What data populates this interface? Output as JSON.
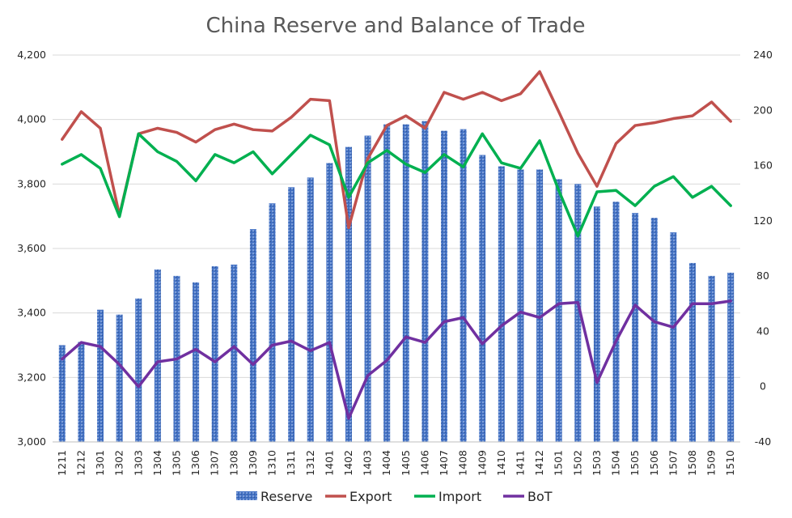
{
  "chart_data": {
    "type": "bar",
    "title": "China Reserve and Balance of Trade",
    "categories": [
      "1211",
      "1212",
      "1301",
      "1302",
      "1303",
      "1304",
      "1305",
      "1306",
      "1307",
      "1308",
      "1309",
      "1310",
      "1311",
      "1312",
      "1401",
      "1402",
      "1403",
      "1404",
      "1405",
      "1406",
      "1407",
      "1408",
      "1409",
      "1410",
      "1411",
      "1412",
      "1501",
      "1502",
      "1503",
      "1504",
      "1505",
      "1506",
      "1507",
      "1508",
      "1509",
      "1510"
    ],
    "left_axis": {
      "ylim": [
        3000,
        4200
      ],
      "ticks": [
        "3,000",
        "3,200",
        "3,400",
        "3,600",
        "3,800",
        "4,000",
        "4,200"
      ]
    },
    "right_axis": {
      "ylim": [
        -40,
        240
      ],
      "ticks": [
        "-40",
        "0",
        "40",
        "80",
        "120",
        "160",
        "200",
        "240"
      ]
    },
    "grid": "horizontal",
    "legend_position": "bottom",
    "series": [
      {
        "name": "Reserve",
        "type": "bar",
        "axis": "left",
        "color": "#4472C4",
        "values": [
          3300,
          3310,
          3410,
          3395,
          3445,
          3535,
          3515,
          3495,
          3545,
          3550,
          3660,
          3740,
          3790,
          3820,
          3865,
          3915,
          3950,
          3985,
          3985,
          3995,
          3965,
          3970,
          3890,
          3855,
          3845,
          3845,
          3815,
          3800,
          3730,
          3745,
          3710,
          3695,
          3650,
          3555,
          3515,
          3525
        ]
      },
      {
        "name": "Export",
        "type": "line",
        "axis": "right",
        "color": "#C0504D",
        "values": [
          179,
          199,
          187,
          124,
          183,
          187,
          184,
          177,
          186,
          190,
          186,
          185,
          195,
          208,
          207,
          115,
          165,
          189,
          196,
          187,
          213,
          208,
          213,
          207,
          212,
          228,
          199,
          169,
          145,
          176,
          189,
          191,
          194,
          196,
          206,
          192
        ]
      },
      {
        "name": "Import",
        "type": "line",
        "axis": "right",
        "color": "#00B050",
        "values": [
          161,
          168,
          158,
          123,
          183,
          170,
          163,
          149,
          168,
          162,
          170,
          154,
          168,
          182,
          175,
          137,
          162,
          171,
          161,
          155,
          168,
          159,
          183,
          162,
          158,
          178,
          142,
          109,
          141,
          142,
          131,
          145,
          152,
          137,
          145,
          131
        ]
      },
      {
        "name": "BoT",
        "type": "line",
        "axis": "right",
        "color": "#7030A0",
        "values": [
          20,
          32,
          29,
          16,
          0,
          18,
          20,
          27,
          18,
          29,
          16,
          30,
          33,
          26,
          32,
          -23,
          8,
          19,
          36,
          32,
          47,
          50,
          31,
          44,
          54,
          50,
          60,
          61,
          3,
          33,
          59,
          47,
          43,
          60,
          60,
          62
        ]
      }
    ]
  }
}
